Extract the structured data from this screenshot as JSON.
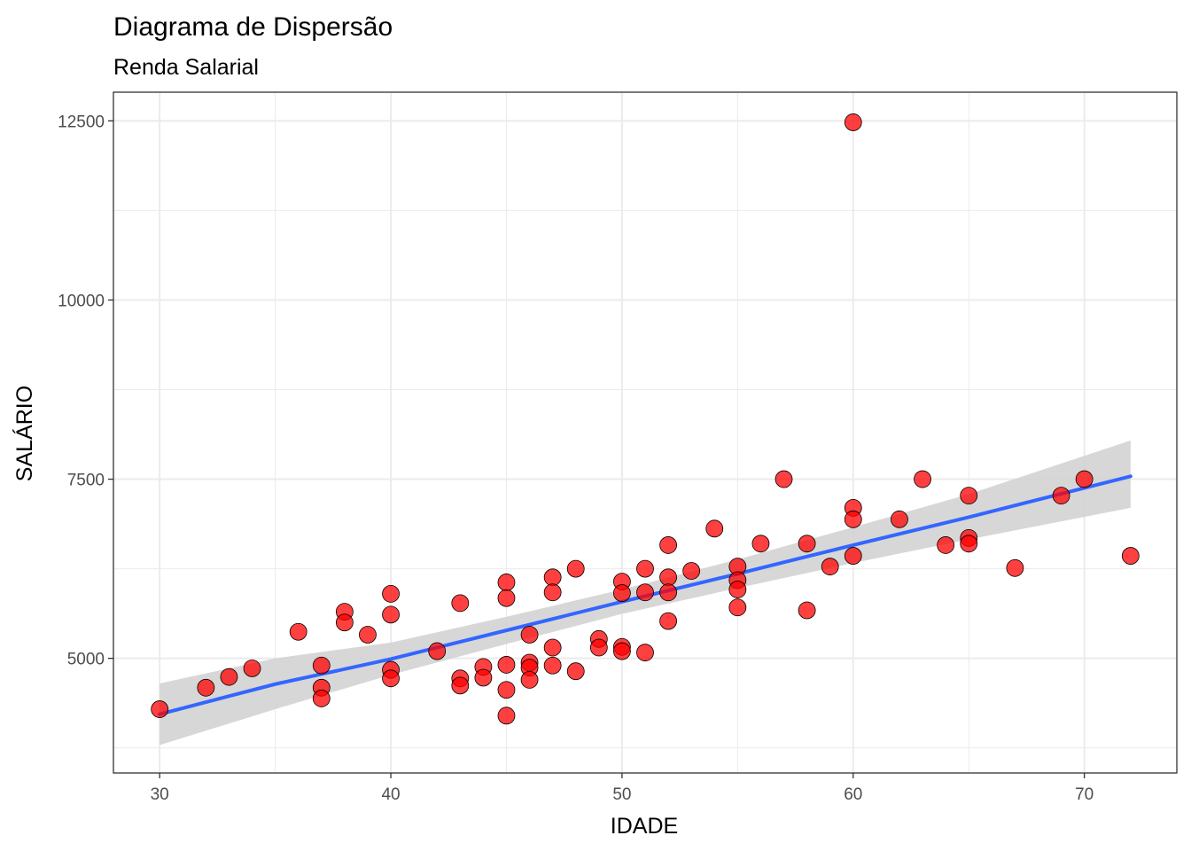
{
  "chart_data": {
    "type": "scatter",
    "title": "Diagrama de Dispersão",
    "subtitle": "Renda Salarial",
    "xlabel": "IDADE",
    "ylabel": "SALÁRIO",
    "xlim": [
      28,
      74
    ],
    "ylim": [
      3400,
      12900
    ],
    "x_ticks": [
      30,
      40,
      50,
      60,
      70
    ],
    "x_tick_labels": [
      "30",
      "40",
      "50",
      "60",
      "70"
    ],
    "y_ticks": [
      5000,
      7500,
      10000,
      12500
    ],
    "y_tick_labels": [
      "5000",
      "7500",
      "10000",
      "12500"
    ],
    "grid": true,
    "point_color": "#ff0000",
    "point_edge_color": "#000000",
    "points": [
      {
        "x": 30,
        "y": 4290
      },
      {
        "x": 32,
        "y": 4590
      },
      {
        "x": 33,
        "y": 4740
      },
      {
        "x": 34,
        "y": 4860
      },
      {
        "x": 36,
        "y": 5370
      },
      {
        "x": 37,
        "y": 4900
      },
      {
        "x": 37,
        "y": 4590
      },
      {
        "x": 37,
        "y": 4440
      },
      {
        "x": 38,
        "y": 5650
      },
      {
        "x": 38,
        "y": 5500
      },
      {
        "x": 39,
        "y": 5330
      },
      {
        "x": 40,
        "y": 5900
      },
      {
        "x": 40,
        "y": 5610
      },
      {
        "x": 40,
        "y": 4840
      },
      {
        "x": 40,
        "y": 4720
      },
      {
        "x": 42,
        "y": 5100
      },
      {
        "x": 43,
        "y": 5770
      },
      {
        "x": 43,
        "y": 4720
      },
      {
        "x": 43,
        "y": 4620
      },
      {
        "x": 44,
        "y": 4880
      },
      {
        "x": 44,
        "y": 4730
      },
      {
        "x": 45,
        "y": 6060
      },
      {
        "x": 45,
        "y": 5840
      },
      {
        "x": 45,
        "y": 4910
      },
      {
        "x": 45,
        "y": 4560
      },
      {
        "x": 45,
        "y": 4200
      },
      {
        "x": 46,
        "y": 5330
      },
      {
        "x": 46,
        "y": 4940
      },
      {
        "x": 46,
        "y": 4870
      },
      {
        "x": 46,
        "y": 4700
      },
      {
        "x": 47,
        "y": 6130
      },
      {
        "x": 47,
        "y": 5920
      },
      {
        "x": 47,
        "y": 5150
      },
      {
        "x": 47,
        "y": 4900
      },
      {
        "x": 48,
        "y": 6250
      },
      {
        "x": 48,
        "y": 4820
      },
      {
        "x": 49,
        "y": 5270
      },
      {
        "x": 49,
        "y": 5150
      },
      {
        "x": 50,
        "y": 6070
      },
      {
        "x": 50,
        "y": 5910
      },
      {
        "x": 50,
        "y": 5160
      },
      {
        "x": 50,
        "y": 5100
      },
      {
        "x": 51,
        "y": 6250
      },
      {
        "x": 51,
        "y": 5920
      },
      {
        "x": 51,
        "y": 5080
      },
      {
        "x": 52,
        "y": 6580
      },
      {
        "x": 52,
        "y": 6130
      },
      {
        "x": 52,
        "y": 5920
      },
      {
        "x": 52,
        "y": 5520
      },
      {
        "x": 53,
        "y": 6220
      },
      {
        "x": 54,
        "y": 6810
      },
      {
        "x": 55,
        "y": 6280
      },
      {
        "x": 55,
        "y": 6090
      },
      {
        "x": 55,
        "y": 5960
      },
      {
        "x": 55,
        "y": 5710
      },
      {
        "x": 56,
        "y": 6600
      },
      {
        "x": 57,
        "y": 7500
      },
      {
        "x": 58,
        "y": 6600
      },
      {
        "x": 58,
        "y": 5670
      },
      {
        "x": 59,
        "y": 6280
      },
      {
        "x": 60,
        "y": 12480
      },
      {
        "x": 60,
        "y": 7100
      },
      {
        "x": 60,
        "y": 6940
      },
      {
        "x": 60,
        "y": 6430
      },
      {
        "x": 62,
        "y": 6940
      },
      {
        "x": 63,
        "y": 7500
      },
      {
        "x": 64,
        "y": 6580
      },
      {
        "x": 65,
        "y": 7270
      },
      {
        "x": 65,
        "y": 6680
      },
      {
        "x": 65,
        "y": 6600
      },
      {
        "x": 67,
        "y": 6260
      },
      {
        "x": 69,
        "y": 7270
      },
      {
        "x": 70,
        "y": 7500
      },
      {
        "x": 72,
        "y": 6430
      }
    ],
    "trend_line": {
      "method": "lm",
      "color": "#3366ff",
      "band_color": "#d3d3d3",
      "x": [
        30,
        35,
        40,
        45,
        50,
        55,
        60,
        65,
        72
      ],
      "y": [
        4220,
        4640,
        4990,
        5390,
        5790,
        6180,
        6580,
        6970,
        7540
      ],
      "ci_low": [
        3790,
        4290,
        4770,
        5200,
        5620,
        5980,
        6330,
        6660,
        7100
      ],
      "ci_high": [
        4650,
        5000,
        5220,
        5580,
        5960,
        6380,
        6830,
        7290,
        8040
      ]
    }
  }
}
